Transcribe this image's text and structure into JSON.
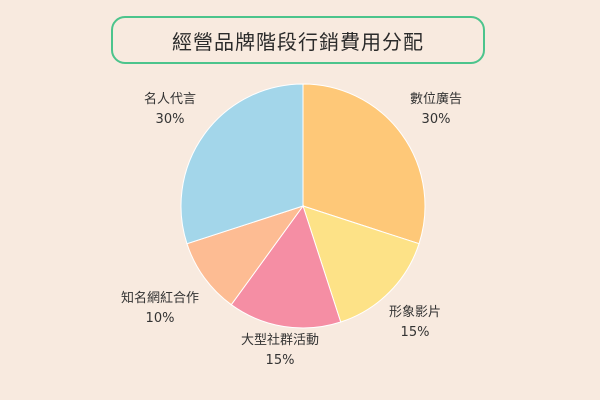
{
  "chart_data": {
    "type": "pie",
    "title": "經營品牌階段行銷費用分配",
    "categories": [
      "數位廣告",
      "形象影片",
      "大型社群活動",
      "知名網紅合作",
      "名人代言"
    ],
    "values": [
      30,
      15,
      15,
      10,
      30
    ],
    "value_labels": [
      "30%",
      "15%",
      "15%",
      "10%",
      "30%"
    ],
    "colors": [
      "#fec878",
      "#fde287",
      "#f58ea4",
      "#fdbc93",
      "#a3d6ea"
    ],
    "start_angle": "12 o'clock",
    "direction": "clockwise"
  }
}
